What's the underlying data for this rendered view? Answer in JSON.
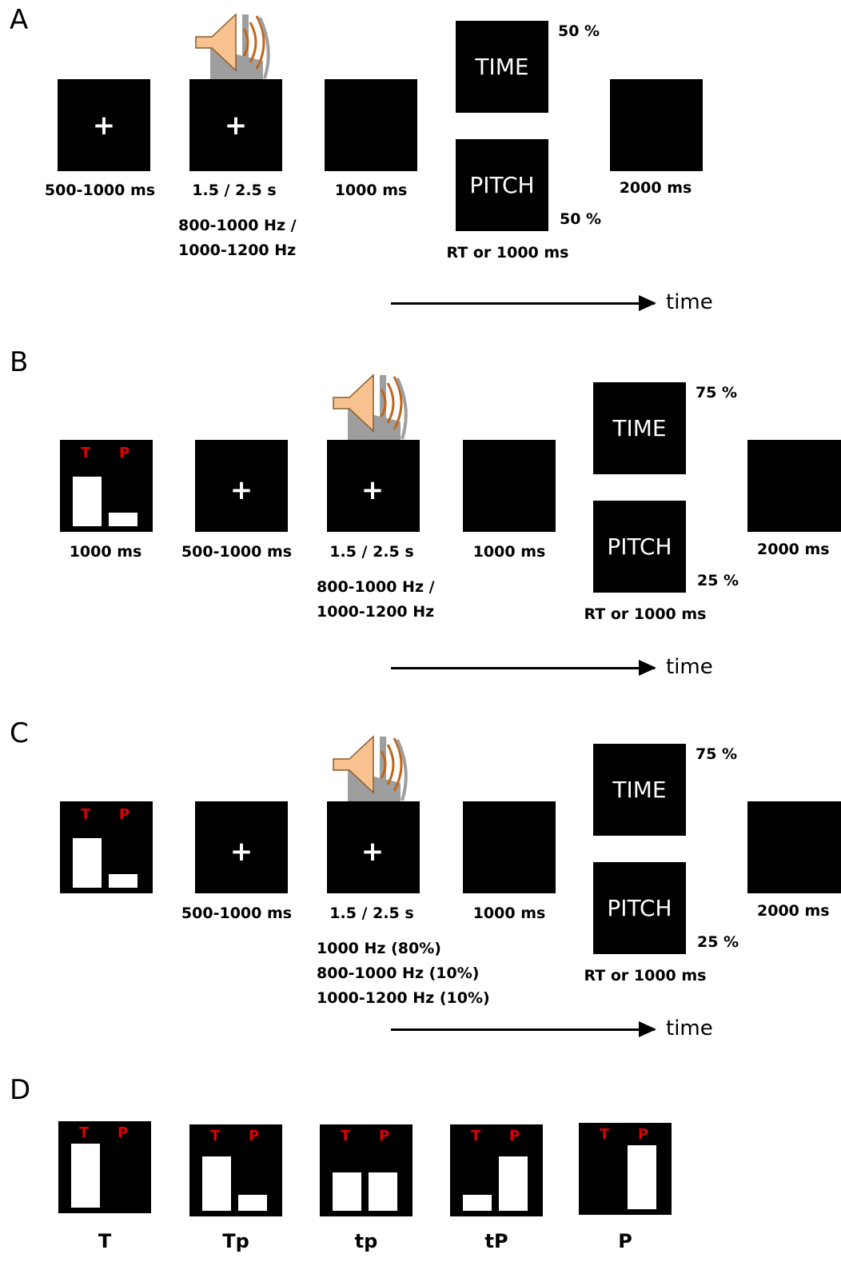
{
  "panel_labels": [
    "A",
    "B",
    "C",
    "D"
  ],
  "time_label": "time",
  "cross_symbol": "+",
  "cue_letters": {
    "t": "T",
    "p": "P"
  },
  "response": {
    "time": "TIME",
    "pitch": "PITCH",
    "deadline": "RT or 1000 ms"
  },
  "panel_a": {
    "fixation": "500-1000 ms",
    "tone_duration": "1.5 / 2.5 s",
    "tone_freq": [
      "800-1000 Hz /",
      "1000-1200 Hz"
    ],
    "blank": "1000 ms",
    "time_pct": "50 %",
    "pitch_pct": "50 %",
    "iti": "2000 ms"
  },
  "panel_b": {
    "cue": "1000 ms",
    "fixation": "500-1000 ms",
    "tone_duration": "1.5 / 2.5 s",
    "tone_freq": [
      "800-1000 Hz /",
      "1000-1200 Hz"
    ],
    "blank": "1000 ms",
    "time_pct": "75 %",
    "pitch_pct": "25 %",
    "iti": "2000 ms"
  },
  "panel_c": {
    "fixation": "500-1000 ms",
    "tone_duration": "1.5 / 2.5 s",
    "tone_freq": [
      "1000 Hz (80%)",
      "800-1000 Hz (10%)",
      "1000-1200 Hz (10%)"
    ],
    "blank": "1000 ms",
    "time_pct": "75 %",
    "pitch_pct": "25 %",
    "iti": "2000 ms"
  },
  "panel_d": {
    "cues": [
      {
        "label": "T",
        "t_level": 1.0,
        "p_level": 0.0
      },
      {
        "label": "Tp",
        "t_level": 0.85,
        "p_level": 0.25
      },
      {
        "label": "tp",
        "t_level": 0.6,
        "p_level": 0.6
      },
      {
        "label": "tP",
        "t_level": 0.25,
        "p_level": 0.85
      },
      {
        "label": "P",
        "t_level": 0.0,
        "p_level": 1.0
      }
    ]
  },
  "colors": {
    "box": "#000000",
    "cue_letter": "#e00000",
    "speaker_body": "#f7c28f",
    "speaker_wave": "#c0651a"
  },
  "icons": {
    "speaker": "speaker-icon"
  }
}
